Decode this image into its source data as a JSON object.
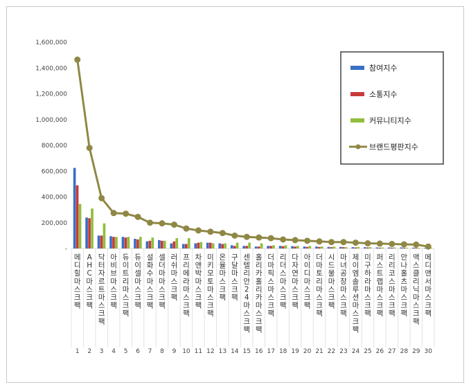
{
  "chart_data": {
    "type": "bar",
    "categories": [
      "메디힐마스크팩",
      "AHC마스크팩",
      "닥터자르트마스크팩",
      "아비브마스크팩",
      "듀이트리마스크팩",
      "듀이셀마스크팩",
      "설화수마스크팩",
      "셀더마마스크팩",
      "러쉬마스크팩",
      "프리메라마스크팩",
      "차앤박마스크팩",
      "미키모토마스크팩",
      "온율마스크팩",
      "구달마스크팩",
      "센텔리안24마스크팩",
      "홀리카홀리카마스크팩",
      "더마픽스마스크팩",
      "리더스마스크팩",
      "다자연마스크팩",
      "아이디마스크팩",
      "더마토리마스크팩",
      "시드물마스크팩",
      "마녀공장마스크팩",
      "제이엠솔루션마스크팩",
      "미구하라마스크팩",
      "퍼스트랩마스크팩",
      "리리코스마스크팩",
      "안나홀츠마스크팩",
      "맥스클리닉마스크팩",
      "메디앤서마스크팩"
    ],
    "ranks": [
      "1",
      "2",
      "3",
      "4",
      "5",
      "6",
      "7",
      "8",
      "9",
      "10",
      "11",
      "12",
      "13",
      "14",
      "15",
      "16",
      "17",
      "18",
      "19",
      "20",
      "21",
      "22",
      "23",
      "24",
      "25",
      "26",
      "27",
      "28",
      "29",
      "30"
    ],
    "series": [
      {
        "name": "참여지수",
        "color": "#3a6fc4",
        "values": [
          625000,
          240000,
          100000,
          95000,
          90000,
          75000,
          55000,
          65000,
          40000,
          35000,
          40000,
          45000,
          40000,
          25000,
          20000,
          15000,
          20000,
          20000,
          18000,
          15000,
          15000,
          12000,
          12000,
          10000,
          10000,
          8000,
          8000,
          8000,
          6000,
          5000
        ]
      },
      {
        "name": "소통지수",
        "color": "#c93a3a",
        "values": [
          490000,
          235000,
          100000,
          90000,
          85000,
          70000,
          60000,
          60000,
          55000,
          35000,
          45000,
          45000,
          35000,
          20000,
          20000,
          15000,
          20000,
          18000,
          15000,
          12000,
          12000,
          10000,
          10000,
          8000,
          8000,
          6000,
          6000,
          6000,
          5000,
          4000
        ]
      },
      {
        "name": "커뮤니티지수",
        "color": "#8fbe3e",
        "values": [
          345000,
          310000,
          195000,
          90000,
          90000,
          90000,
          85000,
          60000,
          80000,
          80000,
          50000,
          40000,
          40000,
          45000,
          45000,
          40000,
          25000,
          25000,
          20000,
          20000,
          15000,
          15000,
          10000,
          12000,
          10000,
          8000,
          8000,
          6000,
          5000,
          5000
        ]
      },
      {
        "name": "브랜드평판지수",
        "color": "#8f8845",
        "values": [
          1465000,
          780000,
          390000,
          275000,
          270000,
          245000,
          200000,
          195000,
          185000,
          155000,
          140000,
          130000,
          120000,
          100000,
          90000,
          85000,
          80000,
          70000,
          65000,
          60000,
          55000,
          50000,
          50000,
          45000,
          40000,
          38000,
          35000,
          32000,
          30000,
          15000
        ]
      }
    ],
    "y_ticks": [
      "-",
      "200,000",
      "400,000",
      "600,000",
      "800,000",
      "1,000,000",
      "1,200,000",
      "1,400,000",
      "1,600,000"
    ],
    "ylim": [
      0,
      1600000
    ],
    "legend_position": "top-right",
    "grid": false
  }
}
